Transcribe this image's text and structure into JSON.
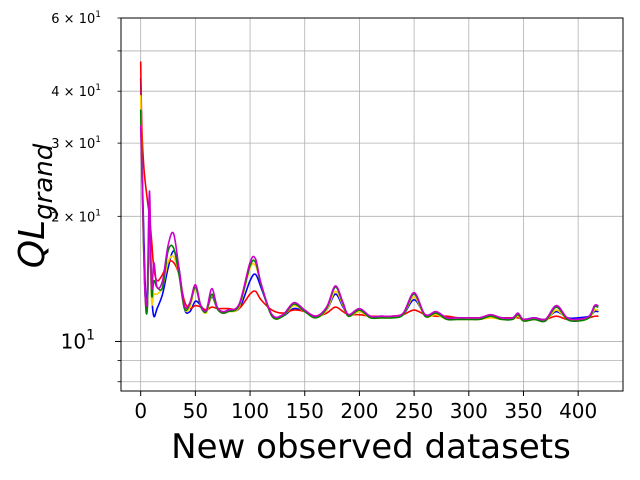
{
  "chart_data": {
    "type": "line",
    "xlabel": "New observed datasets",
    "ylabel": "QL",
    "ylabel_subscript": "grand",
    "xlim": [
      -18,
      441
    ],
    "ylim": [
      7.6,
      60
    ],
    "yscale": "log",
    "grid": true,
    "x_ticks": [
      0,
      50,
      100,
      150,
      200,
      250,
      300,
      350,
      400
    ],
    "x_tick_labels": [
      "0",
      "50",
      "100",
      "150",
      "200",
      "250",
      "300",
      "350",
      "400"
    ],
    "y_major_ticks": [
      10
    ],
    "y_major_labels": [
      {
        "base": "10",
        "exp": "1"
      }
    ],
    "y_minor_ticks": [
      8,
      9,
      20,
      30,
      40,
      50,
      60
    ],
    "y_minor_labels": [
      {
        "value": 20,
        "mant": "2",
        "base": "10",
        "exp": "1"
      },
      {
        "value": 30,
        "mant": "3",
        "base": "10",
        "exp": "1"
      },
      {
        "value": 40,
        "mant": "4",
        "base": "10",
        "exp": "1"
      },
      {
        "value": 60,
        "mant": "6",
        "base": "10",
        "exp": "1"
      }
    ],
    "series": [
      {
        "color": "#0000ff",
        "x": [
          0,
          2,
          4,
          6,
          8,
          10,
          12,
          15,
          20,
          25,
          30,
          35,
          40,
          45,
          50,
          55,
          60,
          65,
          70,
          75,
          80,
          90,
          100,
          105,
          110,
          120,
          130,
          140,
          150,
          160,
          170,
          178,
          185,
          190,
          200,
          210,
          220,
          230,
          240,
          250,
          260,
          270,
          280,
          290,
          300,
          310,
          320,
          330,
          340,
          345,
          350,
          360,
          370,
          380,
          390,
          400,
          410,
          415,
          418
        ],
        "y": [
          43,
          22,
          14,
          12,
          18,
          13,
          11.5,
          12,
          13,
          15,
          16.5,
          15,
          12,
          11.8,
          12.5,
          12.2,
          11.8,
          12.8,
          12,
          11.7,
          11.9,
          12,
          14,
          14.5,
          13.5,
          11.6,
          11.5,
          12,
          11.8,
          11.5,
          11.9,
          13,
          12.1,
          11.6,
          11.8,
          11.5,
          11.5,
          11.5,
          11.6,
          12.6,
          11.6,
          11.6,
          11.4,
          11.4,
          11.4,
          11.4,
          11.5,
          11.4,
          11.4,
          11.5,
          11.3,
          11.4,
          11.3,
          11.8,
          11.4,
          11.4,
          11.5,
          11.8,
          11.8
        ]
      },
      {
        "color": "#ff0000",
        "x": [
          0,
          1,
          3,
          6,
          8,
          10,
          12,
          15,
          20,
          25,
          30,
          35,
          40,
          45,
          50,
          55,
          60,
          65,
          70,
          75,
          80,
          90,
          100,
          105,
          110,
          120,
          130,
          140,
          150,
          160,
          170,
          178,
          185,
          190,
          200,
          210,
          220,
          230,
          240,
          250,
          260,
          270,
          280,
          290,
          300,
          310,
          320,
          330,
          340,
          345,
          350,
          360,
          370,
          380,
          390,
          400,
          410,
          415,
          418
        ],
        "y": [
          47,
          33,
          26,
          22,
          20,
          17.5,
          15,
          14,
          14.5,
          15.5,
          15.5,
          14.5,
          12.5,
          12,
          12.2,
          12.1,
          11.9,
          12.1,
          12,
          12,
          12,
          12,
          13,
          13.2,
          12.6,
          11.9,
          11.7,
          11.9,
          11.8,
          11.5,
          11.7,
          12.1,
          11.8,
          11.6,
          11.6,
          11.5,
          11.5,
          11.5,
          11.6,
          11.9,
          11.6,
          11.5,
          11.5,
          11.4,
          11.4,
          11.4,
          11.5,
          11.4,
          11.4,
          11.4,
          11.3,
          11.3,
          11.3,
          11.5,
          11.3,
          11.3,
          11.4,
          11.5,
          11.5
        ]
      },
      {
        "color": "#ffd000",
        "x": [
          0,
          2,
          4,
          6,
          8,
          10,
          12,
          15,
          20,
          25,
          30,
          35,
          40,
          45,
          50,
          55,
          60,
          65,
          70,
          75,
          80,
          90,
          100,
          105,
          110,
          120,
          130,
          140,
          150,
          160,
          170,
          178,
          185,
          190,
          200,
          210,
          220,
          230,
          240,
          250,
          260,
          270,
          280,
          290,
          300,
          310,
          320,
          330,
          340,
          345,
          350,
          360,
          370,
          380,
          390,
          400,
          410,
          415,
          418
        ],
        "y": [
          39,
          20,
          13,
          12,
          19,
          12.5,
          13,
          13,
          13.5,
          15.5,
          16,
          14.5,
          12,
          12.1,
          13.4,
          12.2,
          11.7,
          12.9,
          12,
          11.7,
          11.8,
          12.1,
          15,
          15.2,
          13.8,
          11.5,
          11.5,
          12.2,
          11.8,
          11.4,
          11.9,
          13.2,
          12.2,
          11.5,
          11.8,
          11.4,
          11.4,
          11.4,
          11.6,
          12.8,
          11.5,
          11.6,
          11.3,
          11.3,
          11.3,
          11.3,
          11.4,
          11.3,
          11.3,
          11.5,
          11.2,
          11.3,
          11.2,
          11.9,
          11.3,
          11.2,
          11.4,
          11.9,
          11.9
        ]
      },
      {
        "color": "#008000",
        "x": [
          0,
          2,
          4,
          6,
          8,
          10,
          12,
          15,
          20,
          25,
          30,
          35,
          40,
          45,
          50,
          55,
          60,
          65,
          70,
          75,
          80,
          90,
          100,
          105,
          110,
          120,
          130,
          140,
          150,
          160,
          170,
          178,
          185,
          190,
          200,
          210,
          220,
          230,
          240,
          250,
          260,
          270,
          280,
          290,
          300,
          310,
          320,
          330,
          340,
          345,
          350,
          360,
          370,
          380,
          390,
          400,
          410,
          415,
          418
        ],
        "y": [
          36,
          20,
          13,
          12,
          20,
          13,
          14,
          13.5,
          13.5,
          16.5,
          16.8,
          14.5,
          12,
          12.3,
          13.5,
          12.1,
          11.8,
          13,
          12,
          11.7,
          11.8,
          12.2,
          15.2,
          15.5,
          13.7,
          11.5,
          11.5,
          12.3,
          11.8,
          11.4,
          12,
          13.5,
          12.3,
          11.5,
          11.9,
          11.4,
          11.4,
          11.4,
          11.6,
          13,
          11.5,
          11.7,
          11.3,
          11.3,
          11.3,
          11.3,
          11.5,
          11.3,
          11.3,
          11.6,
          11.2,
          11.3,
          11.2,
          12.1,
          11.3,
          11.2,
          11.4,
          12.1,
          12.1
        ]
      },
      {
        "color": "#cc00cc",
        "x": [
          0,
          2,
          4,
          6,
          8,
          10,
          12,
          15,
          20,
          25,
          30,
          35,
          40,
          45,
          50,
          55,
          60,
          65,
          70,
          75,
          80,
          90,
          100,
          105,
          110,
          120,
          130,
          140,
          150,
          160,
          170,
          178,
          185,
          190,
          200,
          210,
          220,
          230,
          240,
          250,
          260,
          270,
          280,
          290,
          300,
          310,
          320,
          330,
          340,
          345,
          350,
          360,
          370,
          380,
          390,
          400,
          410,
          415,
          418
        ],
        "y": [
          33,
          21,
          13,
          13,
          23,
          13.5,
          15.5,
          13.5,
          14,
          17,
          18.2,
          15,
          12.2,
          12.4,
          13.7,
          12.2,
          11.9,
          13.4,
          12.1,
          11.8,
          11.9,
          12.3,
          15.5,
          15.8,
          13.8,
          11.6,
          11.6,
          12.4,
          11.9,
          11.5,
          12.1,
          13.6,
          12.4,
          11.6,
          12,
          11.5,
          11.5,
          11.5,
          11.7,
          13.1,
          11.6,
          11.8,
          11.4,
          11.4,
          11.4,
          11.4,
          11.6,
          11.4,
          11.4,
          11.7,
          11.3,
          11.4,
          11.3,
          12.2,
          11.4,
          11.3,
          11.5,
          12.2,
          12.2
        ]
      }
    ]
  }
}
